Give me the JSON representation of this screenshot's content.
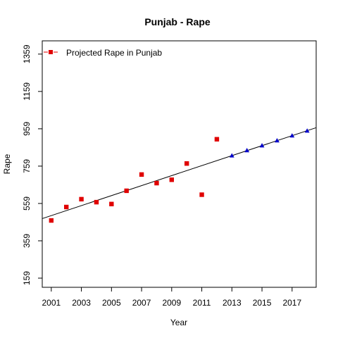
{
  "chart_data": {
    "type": "scatter",
    "title": "Punjab  -  Rape",
    "xlabel": "Year",
    "ylabel": "Rape",
    "xlim": [
      2000.4,
      2018.6
    ],
    "ylim": [
      110,
      1430
    ],
    "x_ticks": [
      2001,
      2003,
      2005,
      2007,
      2009,
      2011,
      2013,
      2015,
      2017
    ],
    "y_ticks": [
      159,
      359,
      559,
      759,
      959,
      1159,
      1359
    ],
    "grid": false,
    "legend": {
      "position": "top-left",
      "entries": [
        "Projected Rape  in  Punjab"
      ]
    },
    "series": [
      {
        "marker": "square",
        "color": "#e00000",
        "x": [
          2001,
          2002,
          2003,
          2004,
          2005,
          2006,
          2007,
          2008,
          2009,
          2010,
          2011,
          2012
        ],
        "values": [
          468,
          540,
          582,
          566,
          556,
          627,
          714,
          668,
          686,
          773,
          606,
          903
        ]
      },
      {
        "marker": "triangle",
        "color": "#0000cc",
        "x": [
          2013,
          2014,
          2015,
          2016,
          2017,
          2018
        ],
        "values": [
          815,
          843,
          869,
          896,
          922,
          948
        ]
      }
    ],
    "trend_line": {
      "color": "#000000",
      "x": [
        2000.4,
        2018.6
      ],
      "y": [
        478,
        965
      ]
    }
  }
}
